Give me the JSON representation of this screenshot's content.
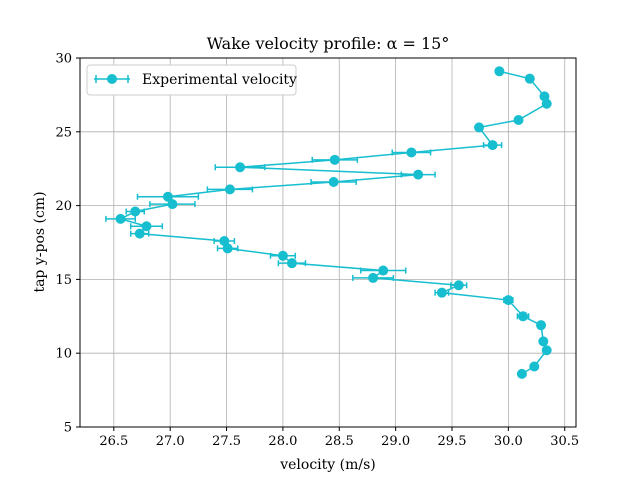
{
  "chart_data": {
    "type": "scatter",
    "title": "Wake velocity profile: α = 15°",
    "xlabel": "velocity (m/s)",
    "ylabel": "tap y-pos (cm)",
    "xlim": [
      26.2,
      30.6
    ],
    "ylim": [
      5,
      30
    ],
    "xticks": [
      "26.5",
      "27.0",
      "27.5",
      "28.0",
      "28.5",
      "29.0",
      "29.5",
      "30.0",
      "30.5"
    ],
    "yticks": [
      "5",
      "10",
      "15",
      "20",
      "25",
      "30"
    ],
    "grid": true,
    "legend_position": "top-left",
    "color": "#17becf",
    "series": [
      {
        "name": "Experimental velocity",
        "x": [
          29.92,
          30.19,
          30.32,
          30.34,
          30.09,
          29.74,
          29.86,
          29.14,
          28.46,
          27.62,
          29.2,
          28.45,
          27.53,
          26.98,
          27.02,
          26.69,
          26.56,
          26.79,
          26.73,
          27.48,
          27.51,
          28.0,
          28.08,
          28.89,
          28.8,
          29.56,
          29.41,
          30.0,
          30.13,
          30.29,
          30.31,
          30.34,
          30.23,
          30.12
        ],
        "y": [
          29.1,
          28.6,
          27.4,
          26.9,
          25.8,
          25.3,
          24.1,
          23.6,
          23.1,
          22.6,
          22.1,
          21.6,
          21.1,
          20.6,
          20.1,
          19.6,
          19.1,
          18.6,
          18.1,
          17.6,
          17.1,
          16.6,
          16.1,
          15.6,
          15.1,
          14.6,
          14.1,
          13.6,
          12.5,
          11.9,
          10.8,
          10.2,
          9.1,
          8.6
        ],
        "xerr": [
          0,
          0,
          0,
          0,
          0,
          0,
          0.08,
          0.17,
          0.2,
          0.22,
          0.15,
          0.2,
          0.2,
          0.27,
          0.2,
          0.08,
          0.13,
          0.14,
          0.08,
          0.09,
          0.09,
          0.11,
          0.12,
          0.2,
          0.18,
          0.07,
          0.06,
          0.04,
          0.05,
          0,
          0,
          0,
          0,
          0
        ]
      }
    ]
  }
}
